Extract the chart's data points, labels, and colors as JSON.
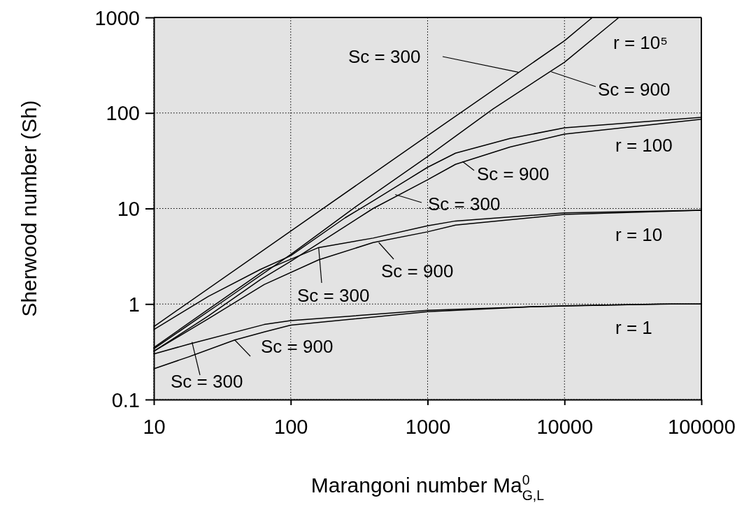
{
  "chart_data": {
    "type": "line",
    "xlabel": "Marangoni number Ma$^{0}$$_{G,L}$",
    "ylabel": "Sherwood number (Sh)",
    "log": "xy",
    "xlim": [
      10,
      100000
    ],
    "xticks": [
      10,
      100,
      1000,
      10000,
      100000
    ],
    "ylim": [
      0.1,
      1000
    ],
    "yticks": [
      0.1,
      1,
      10,
      100,
      1000
    ],
    "grid": true,
    "marker": "none",
    "line_style": "solid",
    "series": [
      {
        "color": "#000000",
        "x": [
          10,
          100,
          1000,
          10000,
          16000
        ],
        "values": [
          0.58,
          5.8,
          58,
          570,
          1000
        ]
      },
      {
        "color": "#000000",
        "x": [
          10,
          30,
          100,
          300,
          1000,
          3000,
          10000,
          25000
        ],
        "values": [
          0.34,
          1.0,
          3.3,
          10.5,
          35,
          110,
          340,
          1000
        ]
      },
      {
        "color": "#000000",
        "x": [
          10,
          25,
          60,
          100,
          250,
          400,
          1000,
          1600,
          4000,
          10000,
          100000
        ],
        "values": [
          0.54,
          1.2,
          2.3,
          3.2,
          8,
          12,
          27,
          38,
          54,
          70,
          90
        ]
      },
      {
        "color": "#000000",
        "x": [
          10,
          25,
          60,
          100,
          250,
          400,
          1000,
          1600,
          4000,
          10000,
          100000
        ],
        "values": [
          0.32,
          0.75,
          1.8,
          2.8,
          6.5,
          10,
          20,
          29,
          44,
          60,
          86
        ]
      },
      {
        "color": "#000000",
        "x": [
          10,
          25,
          64,
          160,
          400,
          1000,
          1600,
          10000,
          100000
        ],
        "values": [
          0.35,
          0.88,
          2.25,
          3.9,
          4.9,
          6.6,
          7.4,
          9.0,
          9.6
        ]
      },
      {
        "color": "#000000",
        "x": [
          10,
          25,
          64,
          160,
          400,
          1000,
          1600,
          10000,
          100000
        ],
        "values": [
          0.32,
          0.7,
          1.6,
          2.9,
          4.4,
          5.7,
          6.7,
          8.65,
          9.6
        ]
      },
      {
        "color": "#000000",
        "x": [
          10,
          18,
          64,
          100,
          1000,
          10000,
          60000,
          100000
        ],
        "values": [
          0.3,
          0.38,
          0.61,
          0.67,
          0.86,
          0.96,
          1.0,
          1.0
        ]
      },
      {
        "color": "#000000",
        "x": [
          10,
          18,
          39,
          64,
          100,
          1000,
          6000,
          50000,
          100000
        ],
        "values": [
          0.21,
          0.28,
          0.42,
          0.51,
          0.6,
          0.83,
          0.94,
          1.0,
          1.0
        ]
      }
    ],
    "annotations": [
      "r = 10⁵",
      {
        "text": "Sc = 300",
        "x": 4600,
        "y": 267
      },
      {
        "text": "Sc = 900",
        "x": 8000,
        "y": 270
      },
      "r = 100",
      {
        "text": "Sc = 900",
        "x": 1800,
        "y": 31
      },
      {
        "text": "Sc = 300",
        "x": 580,
        "y": 14
      },
      "r = 10",
      {
        "text": "Sc = 300",
        "x": 160,
        "y": 3.9
      },
      {
        "text": "Sc = 900",
        "x": 440,
        "y": 4.4
      },
      "r = 1",
      {
        "text": "Sc = 300",
        "x": 19,
        "y": 0.4
      },
      {
        "text": "Sc = 900",
        "x": 39,
        "y": 0.42
      }
    ]
  }
}
